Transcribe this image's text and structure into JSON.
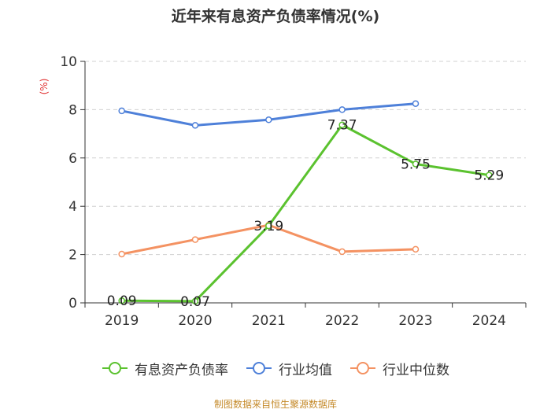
{
  "chart_data": {
    "type": "line",
    "title": "近年来有息资产负债率情况(%)",
    "ylabel": "(%)",
    "ylim": [
      0,
      10
    ],
    "yticks": [
      "0",
      "2",
      "4",
      "6",
      "8",
      "10"
    ],
    "categories": [
      "2019",
      "2020",
      "2021",
      "2022",
      "2023",
      "2024"
    ],
    "grid": true,
    "legend_position": "bottom",
    "series": [
      {
        "name": "有息资产负债率",
        "color": "#5bc22f",
        "values": [
          0.09,
          0.07,
          3.19,
          7.37,
          5.75,
          5.29
        ],
        "labels": [
          "0.09",
          "0.07",
          "3.19",
          "7.37",
          "5.75",
          "5.29"
        ]
      },
      {
        "name": "行业均值",
        "color": "#4e80d9",
        "values": [
          7.95,
          7.35,
          7.58,
          8.0,
          8.25,
          null
        ]
      },
      {
        "name": "行业中位数",
        "color": "#f49262",
        "values": [
          2.02,
          2.62,
          3.22,
          2.12,
          2.22,
          null
        ]
      }
    ],
    "source": "制图数据来自恒生聚源数据库"
  }
}
